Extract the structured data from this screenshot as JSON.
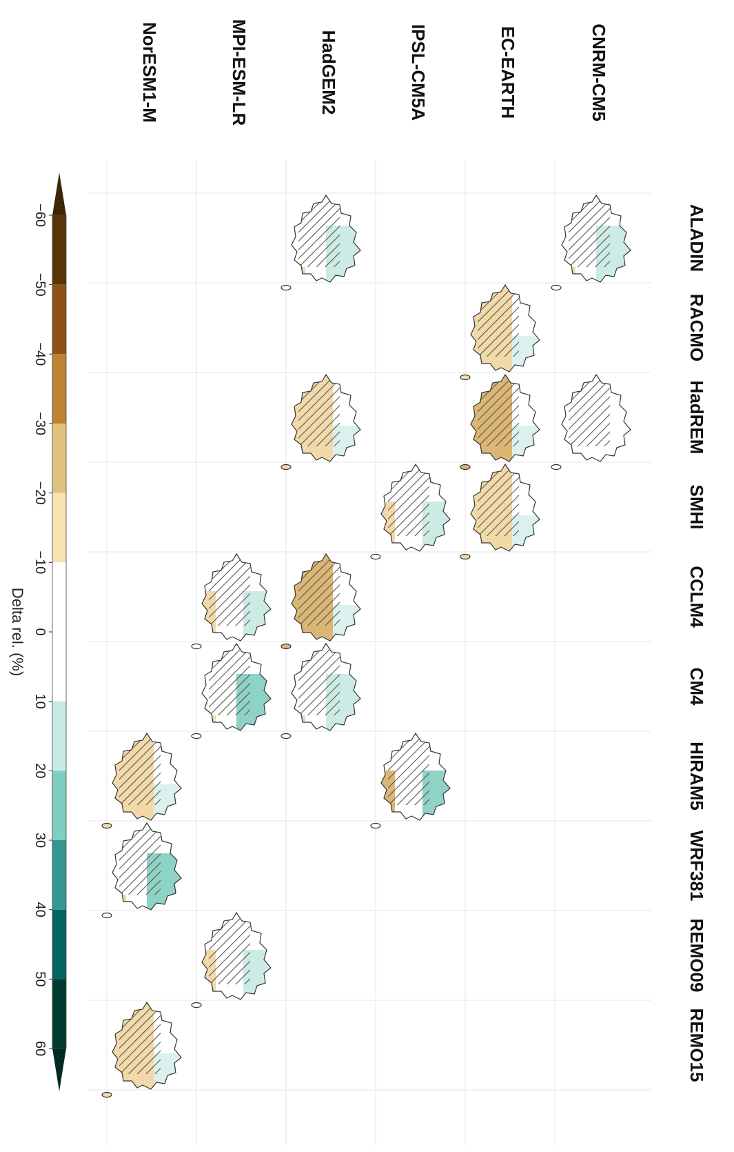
{
  "gcms": [
    "CNRM-CM5",
    "EC-EARTH",
    "IPSL-CM5A",
    "HadGEM2",
    "MPI-ESM-LR",
    "NorESM1-M"
  ],
  "rcms": [
    "ALADIN",
    "RACMO",
    "HadREM",
    "SMHI",
    "CCLM4",
    "CM4",
    "HIRAM5",
    "WRF381",
    "REMO09",
    "REMO15"
  ],
  "cells": [
    {
      "gcm": 0,
      "rcm": 0,
      "tone": "wet",
      "level": 1
    },
    {
      "gcm": 0,
      "rcm": 2,
      "tone": "neutral",
      "level": 0
    },
    {
      "gcm": 1,
      "rcm": 1,
      "tone": "dry",
      "level": 1
    },
    {
      "gcm": 1,
      "rcm": 2,
      "tone": "dry",
      "level": 2
    },
    {
      "gcm": 1,
      "rcm": 3,
      "tone": "dry",
      "level": 1
    },
    {
      "gcm": 2,
      "rcm": 3,
      "tone": "mixed",
      "level": 1
    },
    {
      "gcm": 2,
      "rcm": 6,
      "tone": "mixed",
      "level": 2
    },
    {
      "gcm": 3,
      "rcm": 0,
      "tone": "wet",
      "level": 1
    },
    {
      "gcm": 3,
      "rcm": 2,
      "tone": "dry",
      "level": 1
    },
    {
      "gcm": 3,
      "rcm": 4,
      "tone": "dry",
      "level": 2
    },
    {
      "gcm": 3,
      "rcm": 5,
      "tone": "wet",
      "level": 1
    },
    {
      "gcm": 4,
      "rcm": 4,
      "tone": "mixed",
      "level": 1
    },
    {
      "gcm": 4,
      "rcm": 5,
      "tone": "wet",
      "level": 2
    },
    {
      "gcm": 4,
      "rcm": 8,
      "tone": "mixed",
      "level": 1
    },
    {
      "gcm": 5,
      "rcm": 6,
      "tone": "dry",
      "level": 1
    },
    {
      "gcm": 5,
      "rcm": 7,
      "tone": "wet",
      "level": 2
    },
    {
      "gcm": 5,
      "rcm": 9,
      "tone": "dry",
      "level": 1
    }
  ],
  "colorbar": {
    "title": "Delta rel. (%)",
    "ticks": [
      "−60",
      "−50",
      "−40",
      "−30",
      "−20",
      "−10",
      "0",
      "10",
      "20",
      "30",
      "40",
      "50",
      "60"
    ],
    "bins": [
      {
        "from": -60,
        "to": -50,
        "color": "#5a3509"
      },
      {
        "from": -50,
        "to": -40,
        "color": "#8c5217"
      },
      {
        "from": -40,
        "to": -30,
        "color": "#bd8232"
      },
      {
        "from": -30,
        "to": -20,
        "color": "#dfc27d"
      },
      {
        "from": -20,
        "to": -10,
        "color": "#f6e2b3"
      },
      {
        "from": -10,
        "to": 10,
        "color": "#ffffff"
      },
      {
        "from": 10,
        "to": 20,
        "color": "#c7eae5"
      },
      {
        "from": 20,
        "to": 30,
        "color": "#80cdc1"
      },
      {
        "from": 30,
        "to": 40,
        "color": "#35978f"
      },
      {
        "from": 40,
        "to": 50,
        "color": "#01665e"
      },
      {
        "from": 50,
        "to": 60,
        "color": "#003c30"
      }
    ],
    "end_low": "#3f2406",
    "end_high": "#002a22"
  },
  "palette": {
    "dry_light": "#f2d9a8",
    "dry_mid": "#dcb675",
    "wet_light": "#cdebe5",
    "wet_mid": "#8fd2c6",
    "outline": "#333333",
    "hatch": "#555555"
  }
}
